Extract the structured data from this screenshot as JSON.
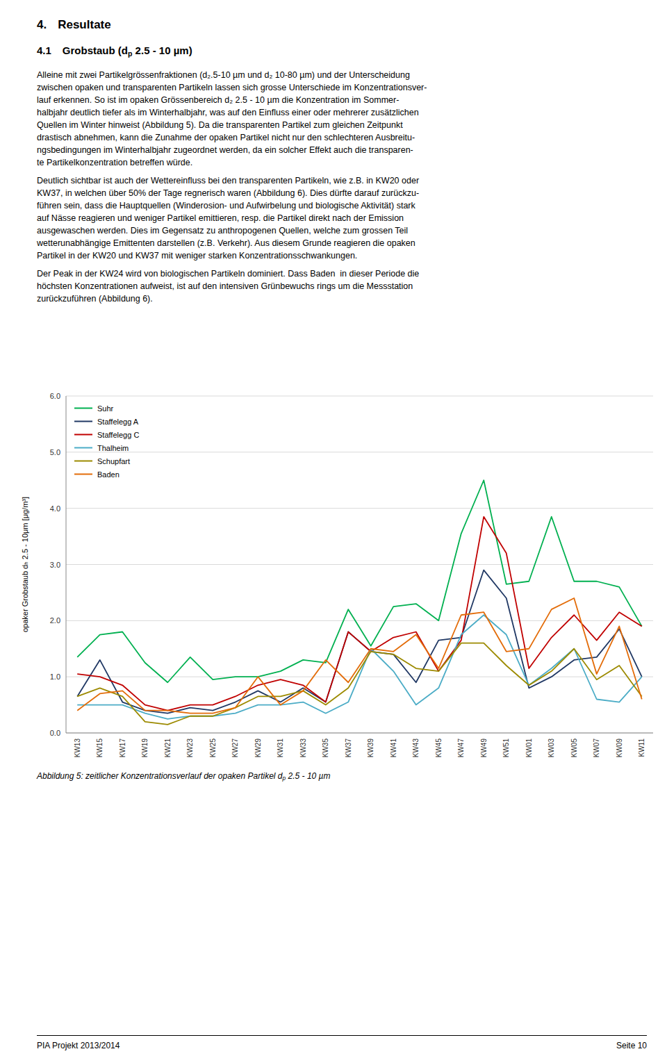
{
  "page": {
    "section_number": "4.",
    "section_title": "Resultate",
    "subsection_number": "4.1",
    "subsection_title": "Grobstaub (d",
    "subsection_sub": "p",
    "subsection_end": " 2.5 - 10 µm)",
    "paragraphs": [
      [
        "Alleine mit zwei Partikelgrössenfraktionen (d₂.5-10 µm und d₂ 10-80 µm) und der Unterscheidung",
        "zwischen opaken und transparenten Partikeln lassen sich grosse Unterschiede im Konzentrationsver-",
        "lauf erkennen. So ist im opaken Grössenbereich d₂ 2.5 - 10 µm die Konzentration im Sommer-",
        "halbjahr deutlich tiefer als im Winterhalbjahr, was auf den Einfluss einer oder mehrerer zusätzlichen",
        "Quellen im Winter hinweist (Abbildung 5). Da die transparenten Partikel zum gleichen Zeitpunkt",
        "drastisch abnehmen, kann die Zunahme der opaken Partikel nicht nur den schlechteren Ausbreitu-",
        "ngsbedingungen im Winterhalbjahr zugeordnet werden, da ein solcher Effekt auch die transparen-",
        "te Partikelkonzentration betreffen würde."
      ],
      [
        "Deutlich sichtbar ist auch der Wettereinfluss bei den transparenten Partikeln, wie z.B. in KW20 oder",
        "KW37, in welchen über 50% der Tage regnerisch waren (Abbildung 6). Dies dürfte darauf zurückzu-",
        "führen sein, dass die Hauptquellen (Winderosion- und Aufwirbelung und biologische Aktivität) stark",
        "auf Nässe reagieren und weniger Partikel emittieren, resp. die Partikel direkt nach der Emission",
        "ausgewaschen werden. Dies im Gegensatz zu anthropogenen Quellen, welche zum grossen Teil",
        "wetterunabhängige Emittenten darstellen (z.B. Verkehr). Aus diesem Grunde reagieren die opaken",
        "Partikel in der KW20 und KW37 mit weniger starken Konzentrationsschwankungen."
      ],
      [
        "Der Peak in der KW24 wird von biologischen Partikeln dominiert. Dass Baden  in dieser Periode die",
        "höchsten Konzentrationen aufweist, ist auf den intensiven Grünbewuchs rings um die Messstation",
        "zurückzuführen (Abbildung 6)."
      ]
    ],
    "caption": "Abbildung 5: zeitlicher Konzentrationsverlauf der opaken Partikel d",
    "caption_sub": "p",
    "caption_end": " 2.5 - 10 µm",
    "footer_left": "PIA Projekt 2013/2014",
    "footer_right": "Seite 10"
  },
  "chart_data": {
    "type": "line",
    "y_label": "opaker Grobstaub dₕ 2.5 - 10μm [μg/m³]",
    "categories": [
      "KW13",
      "KW15",
      "KW17",
      "KW19",
      "KW21",
      "KW23",
      "KW25",
      "KW27",
      "KW29",
      "KW31",
      "KW33",
      "KW35",
      "KW37",
      "KW39",
      "KW41",
      "KW43",
      "KW45",
      "KW47",
      "KW49",
      "KW51",
      "KW01",
      "KW03",
      "KW05",
      "KW07",
      "KW09",
      "KW11"
    ],
    "series": [
      {
        "name": "Suhr",
        "color": "#00b050",
        "values": [
          1.35,
          1.75,
          1.8,
          1.25,
          0.9,
          1.35,
          0.95,
          1.0,
          1.0,
          1.1,
          1.3,
          1.25,
          2.2,
          1.55,
          2.25,
          2.3,
          2.0,
          3.55,
          4.5,
          2.65,
          2.7,
          3.85,
          2.7,
          2.7,
          2.6,
          1.9
        ]
      },
      {
        "name": "Staffelegg A",
        "color": "#203864",
        "values": [
          0.65,
          1.3,
          0.55,
          0.4,
          0.35,
          0.45,
          0.4,
          0.55,
          0.75,
          0.55,
          0.8,
          0.55,
          1.8,
          1.45,
          1.4,
          0.9,
          1.65,
          1.7,
          2.9,
          2.4,
          0.8,
          1.0,
          1.3,
          1.35,
          1.85,
          1.0
        ]
      },
      {
        "name": "Staffelegg C",
        "color": "#c00000",
        "values": [
          1.05,
          1.0,
          0.85,
          0.5,
          0.4,
          0.5,
          0.5,
          0.65,
          0.85,
          0.95,
          0.85,
          0.55,
          1.8,
          1.45,
          1.7,
          1.8,
          1.1,
          1.65,
          3.85,
          3.2,
          1.15,
          1.7,
          2.1,
          1.65,
          2.15,
          1.9
        ]
      },
      {
        "name": "Thalheim",
        "color": "#4bacc6",
        "values": [
          0.5,
          0.5,
          0.5,
          0.35,
          0.25,
          0.3,
          0.3,
          0.35,
          0.5,
          0.5,
          0.55,
          0.35,
          0.55,
          1.5,
          1.1,
          0.5,
          0.8,
          1.75,
          2.1,
          1.75,
          0.85,
          1.15,
          1.5,
          0.6,
          0.55,
          1.0
        ]
      },
      {
        "name": "Schupfart",
        "color": "#9c8a00",
        "values": [
          0.65,
          0.8,
          0.65,
          0.2,
          0.15,
          0.3,
          0.3,
          0.45,
          0.65,
          0.65,
          0.75,
          0.5,
          0.8,
          1.45,
          1.4,
          1.15,
          1.1,
          1.6,
          1.6,
          1.2,
          0.85,
          1.1,
          1.5,
          0.95,
          1.2,
          0.65
        ]
      },
      {
        "name": "Baden",
        "color": "#e36c09",
        "values": [
          0.4,
          0.7,
          0.75,
          0.4,
          0.4,
          0.35,
          0.35,
          0.45,
          1.0,
          0.5,
          0.75,
          1.3,
          0.9,
          1.5,
          1.45,
          1.75,
          1.15,
          2.1,
          2.15,
          1.45,
          1.5,
          2.2,
          2.4,
          1.05,
          1.9,
          0.6
        ]
      }
    ],
    "ylim": [
      0.0,
      6.0
    ],
    "yticks": [
      {
        "value": 0,
        "label": "0.0"
      },
      {
        "value": 1,
        "label": "1.0"
      },
      {
        "value": 2,
        "label": "2.0"
      },
      {
        "value": 3,
        "label": "3.0"
      },
      {
        "value": 4,
        "label": "4.0"
      },
      {
        "value": 5,
        "label": "5.0"
      },
      {
        "value": 6,
        "label": "6.0"
      }
    ],
    "grid": true,
    "legend": "upper left"
  }
}
